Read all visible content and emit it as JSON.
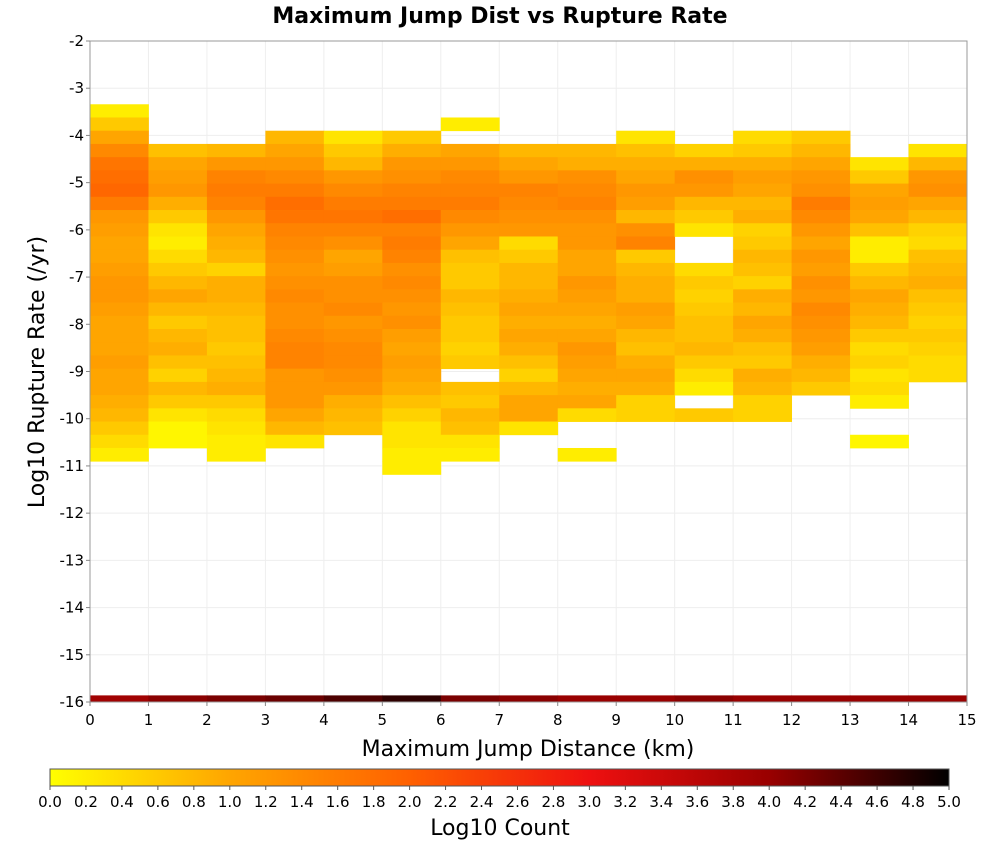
{
  "chart_data": {
    "type": "heatmap",
    "title": "Maximum Jump Dist vs Rupture Rate",
    "xlabel": "Maximum Jump Distance (km)",
    "ylabel": "Log10 Rupture Rate (/yr)",
    "xlim": [
      0,
      15
    ],
    "ylim": [
      -16,
      -2
    ],
    "x_ticks": [
      "0",
      "1",
      "2",
      "3",
      "4",
      "5",
      "6",
      "7",
      "8",
      "9",
      "10",
      "11",
      "12",
      "13",
      "14",
      "15"
    ],
    "y_ticks": [
      "-2",
      "-3",
      "-4",
      "-5",
      "-6",
      "-7",
      "-8",
      "-9",
      "-10",
      "-11",
      "-12",
      "-13",
      "-14",
      "-15",
      "-16"
    ],
    "x_bin_width": 1,
    "y_bin_height": 0.28,
    "colorbar": {
      "label": "Log10 Count",
      "min": 0.0,
      "max": 5.0,
      "ticks": [
        "0.0",
        "0.2",
        "0.4",
        "0.6",
        "0.8",
        "1.0",
        "1.2",
        "1.4",
        "1.6",
        "1.8",
        "2.0",
        "2.2",
        "2.4",
        "2.6",
        "2.8",
        "3.0",
        "3.2",
        "3.4",
        "3.6",
        "3.8",
        "4.0",
        "4.2",
        "4.4",
        "4.6",
        "4.8",
        "5.0"
      ],
      "colors": [
        "#ffff00",
        "#ffa500",
        "#ff6000",
        "#ee1010",
        "#990000",
        "#000000"
      ]
    },
    "columns": [
      {
        "x0": 0,
        "ystart": -3.34,
        "values": [
          0.2,
          0.6,
          1.0,
          1.4,
          1.7,
          1.8,
          1.9,
          1.6,
          1.2,
          1.1,
          1.0,
          1.0,
          1.1,
          1.2,
          1.2,
          1.1,
          1.0,
          1.0,
          1.0,
          1.1,
          1.0,
          1.0,
          0.9,
          0.8,
          0.6,
          0.4,
          0.2
        ]
      },
      {
        "x0": 1,
        "ystart": -4.18,
        "values": [
          0.7,
          1.0,
          1.1,
          1.2,
          0.9,
          0.6,
          0.3,
          0.2,
          0.4,
          0.6,
          0.8,
          1.0,
          0.8,
          0.6,
          0.8,
          0.9,
          0.7,
          0.5,
          0.8,
          0.6,
          0.3,
          0.1,
          0.1
        ]
      },
      {
        "x0": 2,
        "ystart": -4.18,
        "values": [
          0.8,
          1.2,
          1.5,
          1.6,
          1.5,
          1.2,
          1.0,
          0.9,
          0.8,
          0.5,
          0.9,
          0.9,
          0.8,
          0.7,
          0.7,
          0.6,
          0.7,
          0.8,
          0.9,
          0.6,
          0.4,
          0.3,
          0.2,
          0.2
        ]
      },
      {
        "x0": 3,
        "ystart": -3.9,
        "values": [
          0.8,
          1.0,
          1.2,
          1.4,
          1.6,
          1.8,
          1.7,
          1.5,
          1.4,
          1.3,
          1.2,
          1.3,
          1.4,
          1.3,
          1.3,
          1.4,
          1.5,
          1.5,
          1.2,
          1.2,
          1.2,
          1.0,
          0.8,
          0.3
        ]
      },
      {
        "x0": 4,
        "ystart": -3.9,
        "values": [
          0.3,
          0.6,
          0.8,
          1.2,
          1.4,
          1.6,
          1.7,
          1.5,
          1.3,
          1.0,
          1.1,
          1.3,
          1.3,
          1.4,
          1.2,
          1.3,
          1.4,
          1.4,
          1.3,
          1.2,
          0.9,
          0.8,
          0.7
        ]
      },
      {
        "x0": 5,
        "ystart": -3.9,
        "values": [
          0.6,
          0.9,
          1.2,
          1.3,
          1.5,
          1.6,
          1.8,
          1.5,
          1.6,
          1.5,
          1.3,
          1.4,
          1.3,
          1.2,
          1.3,
          1.1,
          1.0,
          1.1,
          1.0,
          0.9,
          0.7,
          0.5,
          0.3,
          0.3,
          0.2,
          0.2
        ]
      },
      {
        "x0": 6,
        "ystart": -3.62,
        "values": [
          0.2,
          0,
          1.0,
          1.2,
          1.4,
          1.5,
          1.6,
          1.4,
          1.2,
          1.0,
          0.7,
          0.6,
          0.6,
          0.8,
          0.7,
          0.6,
          0.6,
          0.5,
          0.6,
          0,
          0.7,
          0.6,
          0.8,
          0.7,
          0.3,
          0.2
        ]
      },
      {
        "x0": 7,
        "ystart": -4.18,
        "values": [
          0.8,
          1.0,
          1.2,
          1.5,
          1.4,
          1.3,
          1.2,
          0.4,
          0.6,
          0.8,
          0.8,
          0.9,
          1.0,
          0.9,
          1.0,
          0.9,
          0.7,
          0.5,
          0.8,
          1.0,
          1.0,
          0.3
        ]
      },
      {
        "x0": 8,
        "ystart": -4.18,
        "values": [
          0.8,
          0.9,
          1.3,
          1.4,
          1.5,
          1.3,
          1.2,
          1.2,
          1.0,
          1.0,
          1.2,
          1.1,
          1.0,
          0.9,
          1.0,
          1.2,
          1.1,
          1.0,
          0.9,
          1.0,
          0.4,
          0,
          0,
          0.2
        ]
      },
      {
        "x0": 9,
        "ystart": -3.9,
        "values": [
          0.3,
          0.7,
          0.9,
          1.0,
          1.2,
          1.1,
          0.8,
          1.3,
          1.5,
          0.6,
          0.8,
          0.9,
          0.9,
          1.1,
          1.0,
          0.8,
          0.7,
          0.9,
          1.0,
          0.9,
          0.5,
          0.5
        ]
      },
      {
        "x0": 10,
        "ystart": -4.18,
        "values": [
          0.5,
          0.9,
          1.3,
          1.2,
          0.8,
          0.6,
          0.3,
          0,
          0,
          0.4,
          0.6,
          0.5,
          0.6,
          0.7,
          0.7,
          0.8,
          0.6,
          0.4,
          0.2,
          0,
          0.6
        ]
      },
      {
        "x0": 11,
        "ystart": -3.9,
        "values": [
          0.4,
          0.6,
          0.9,
          1.1,
          1.0,
          0.8,
          0.9,
          0.5,
          0.6,
          0.8,
          0.7,
          0.5,
          0.9,
          0.8,
          1.0,
          0.9,
          0.7,
          0.6,
          0.9,
          0.8,
          0.5,
          0.5
        ]
      },
      {
        "x0": 12,
        "ystart": -3.9,
        "values": [
          0.6,
          0.8,
          1.0,
          1.2,
          1.3,
          1.6,
          1.4,
          1.2,
          1.0,
          1.2,
          1.1,
          1.3,
          1.2,
          1.4,
          1.3,
          1.2,
          1.1,
          0.9,
          0.8,
          0.6
        ]
      },
      {
        "x0": 13,
        "ystart": -4.46,
        "values": [
          0.3,
          0.6,
          1.0,
          1.1,
          1.0,
          0.7,
          0.2,
          0.2,
          0.6,
          0.8,
          1.0,
          0.9,
          0.8,
          0.6,
          0.4,
          0.5,
          0.3,
          0.4,
          0.2,
          0,
          0,
          0.1
        ]
      },
      {
        "x0": 14,
        "ystart": -4.18,
        "values": [
          0.3,
          0.8,
          1.2,
          1.3,
          1.0,
          0.8,
          0.5,
          0.4,
          0.7,
          0.8,
          0.9,
          0.7,
          0.6,
          0.5,
          0.6,
          0.5,
          0.4,
          0.4
        ]
      }
    ],
    "bottom_strip": [
      3.9,
      4.1,
      4.2,
      4.3,
      4.5,
      4.7,
      4.2,
      4.1,
      4.0,
      4.0,
      4.1,
      4.0,
      4.0,
      4.0,
      4.0
    ]
  }
}
